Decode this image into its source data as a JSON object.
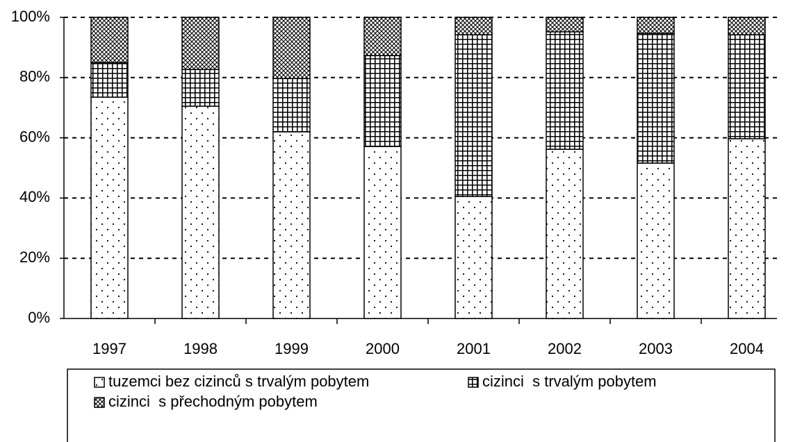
{
  "chart_data": {
    "type": "stacked_bar",
    "categories": [
      "1997",
      "1998",
      "1999",
      "2000",
      "2001",
      "2002",
      "2003",
      "2004"
    ],
    "series": [
      {
        "name": "tuzemci bez cizinců s trvalým pobytem",
        "color": "#000000",
        "pattern": "dots",
        "values": [
          73.5,
          70.5,
          62,
          57.1,
          40.5,
          56.2,
          51.6,
          59.7
        ]
      },
      {
        "name": "cizinci  s trvalým pobytem",
        "color": "#000000",
        "pattern": "grid",
        "values": [
          11.5,
          12.2,
          17.7,
          30.2,
          53.7,
          39,
          43.1,
          34.5
        ]
      },
      {
        "name": "cizinci  s přechodným pobytem",
        "color": "#000000",
        "pattern": "crosshatch",
        "values": [
          15,
          17.3,
          20.3,
          12.7,
          5.8,
          4.8,
          5.3,
          5.8
        ]
      }
    ],
    "ylim": [
      0,
      100
    ],
    "yticks": [
      {
        "value": 0,
        "label": "0%"
      },
      {
        "value": 20,
        "label": "20%"
      },
      {
        "value": 40,
        "label": "40%"
      },
      {
        "value": 60,
        "label": "60%"
      },
      {
        "value": 80,
        "label": "80%"
      },
      {
        "value": 100,
        "label": "100%"
      }
    ],
    "grid": true,
    "legend": "bottom"
  }
}
